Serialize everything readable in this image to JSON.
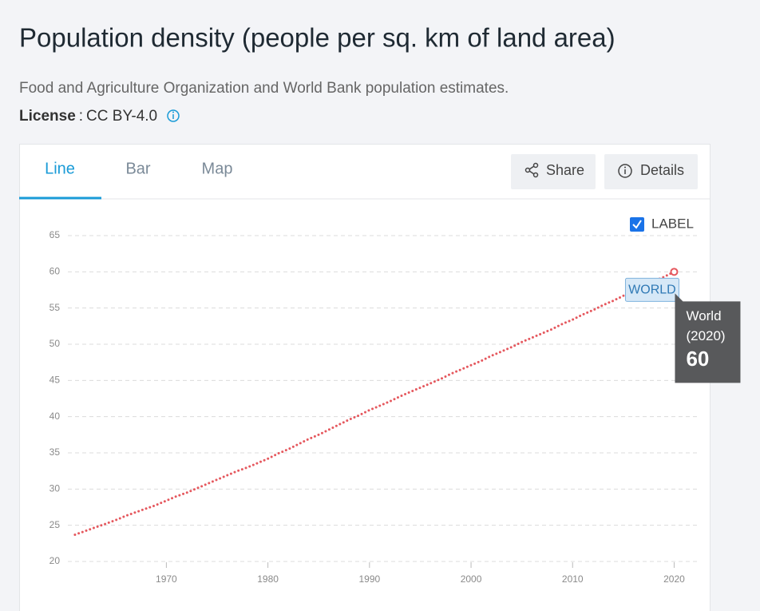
{
  "header": {
    "title": "Population density (people per sq. km of land area)",
    "subtitle": "Food and Agriculture Organization and World Bank population estimates.",
    "license_label": "License",
    "license_sep": ":",
    "license_value": "CC BY-4.0"
  },
  "tabs": [
    "Line",
    "Bar",
    "Map"
  ],
  "buttons": [
    "Share",
    "Details"
  ],
  "label_toggle": "LABEL",
  "tooltip": {
    "name": "World",
    "period": "(2020)",
    "value": "60"
  },
  "chart_data": {
    "type": "line",
    "x": [
      1961,
      1962,
      1963,
      1964,
      1965,
      1966,
      1967,
      1968,
      1969,
      1970,
      1971,
      1972,
      1973,
      1974,
      1975,
      1976,
      1977,
      1978,
      1979,
      1980,
      1981,
      1982,
      1983,
      1984,
      1985,
      1986,
      1987,
      1988,
      1989,
      1990,
      1991,
      1992,
      1993,
      1994,
      1995,
      1996,
      1997,
      1998,
      1999,
      2000,
      2001,
      2002,
      2003,
      2004,
      2005,
      2006,
      2007,
      2008,
      2009,
      2010,
      2011,
      2012,
      2013,
      2014,
      2015,
      2016,
      2017,
      2018,
      2019,
      2020
    ],
    "series": [
      {
        "name": "World",
        "label": "WORLD",
        "color": "#e5585e",
        "values": [
          23.7,
          24.2,
          24.7,
          25.2,
          25.7,
          26.3,
          26.8,
          27.3,
          27.8,
          28.4,
          29.0,
          29.5,
          30.1,
          30.7,
          31.3,
          31.9,
          32.5,
          33.0,
          33.6,
          34.2,
          34.9,
          35.5,
          36.2,
          36.9,
          37.5,
          38.2,
          38.9,
          39.6,
          40.2,
          40.9,
          41.5,
          42.1,
          42.8,
          43.4,
          44.0,
          44.6,
          45.2,
          45.9,
          46.5,
          47.1,
          47.7,
          48.4,
          49.0,
          49.6,
          50.3,
          50.9,
          51.5,
          52.1,
          52.8,
          53.4,
          54.1,
          54.7,
          55.4,
          56.0,
          56.7,
          57.4,
          58.0,
          58.7,
          59.3,
          60.0
        ]
      }
    ],
    "xlim": [
      1960.3,
      2022.4
    ],
    "xticks": [
      1970,
      1980,
      1990,
      2000,
      2010,
      2020
    ],
    "ylim": [
      20,
      65
    ],
    "yticks": [
      20,
      25,
      30,
      35,
      40,
      45,
      50,
      55,
      60,
      65
    ],
    "grid": true
  }
}
